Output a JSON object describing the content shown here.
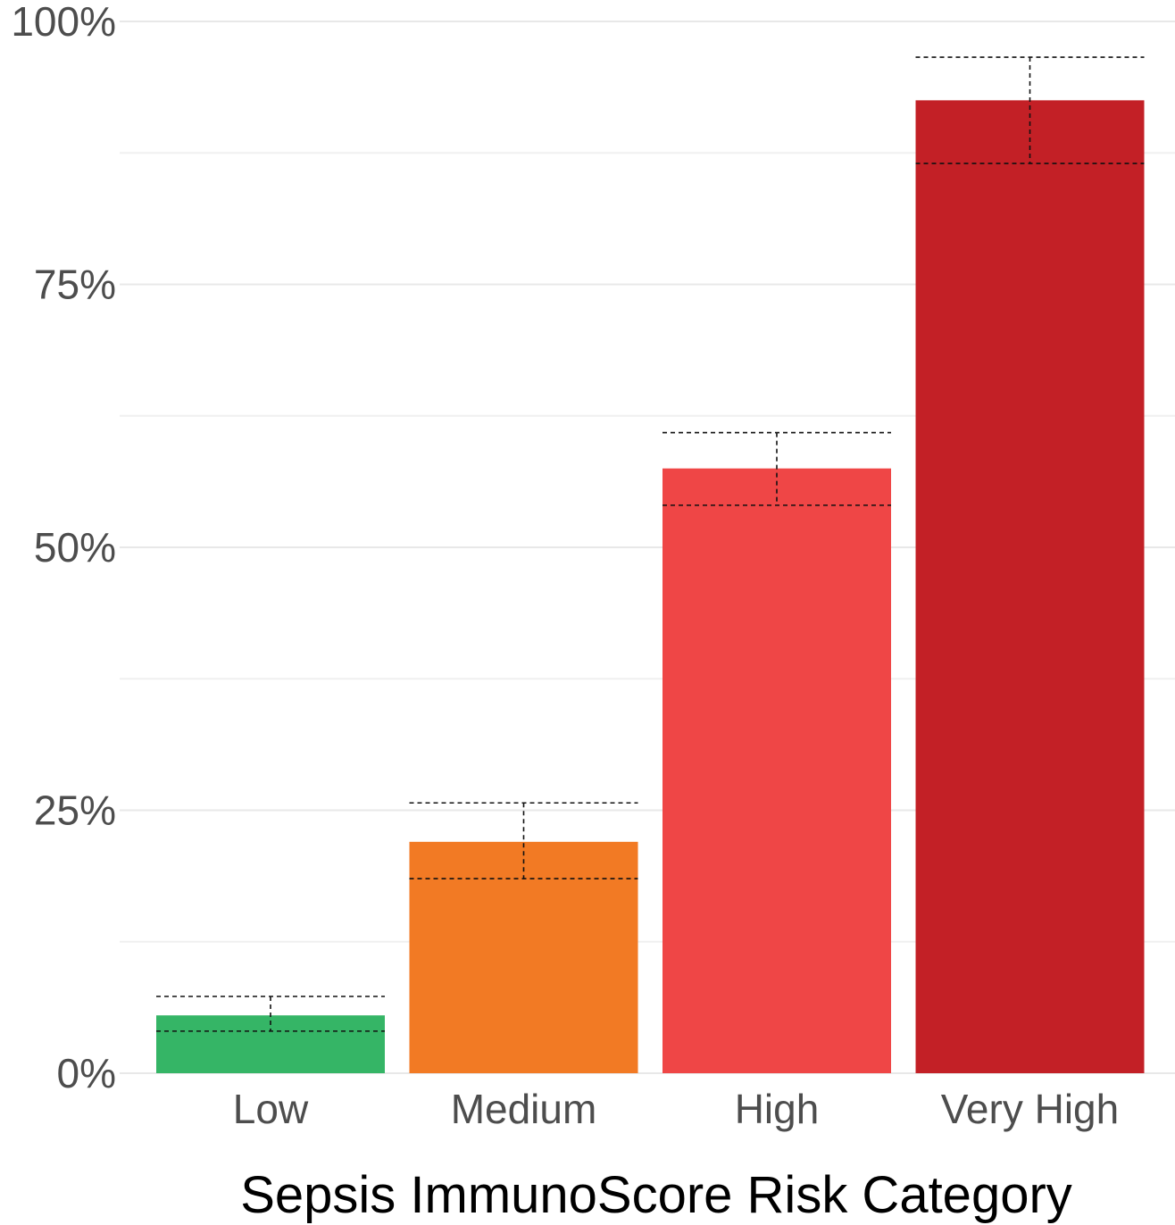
{
  "chart_data": {
    "type": "bar",
    "categories": [
      "Low",
      "Medium",
      "High",
      "Very High"
    ],
    "values": [
      5.5,
      22.0,
      57.5,
      92.5
    ],
    "error_lower": [
      4.0,
      18.5,
      54.0,
      86.5
    ],
    "error_upper": [
      7.3,
      25.7,
      60.9,
      96.6
    ],
    "colors": [
      "#35b566",
      "#f27a24",
      "#ef4646",
      "#c32026"
    ],
    "xlabel": "Sepsis ImmunoScore Risk Category",
    "ylabel": "",
    "ylim": [
      0,
      100
    ],
    "yticks": [
      0,
      25,
      50,
      75,
      100
    ],
    "ytick_labels": [
      "0%",
      "25%",
      "50%",
      "75%",
      "100%"
    ],
    "grid": true,
    "legend": "none"
  }
}
